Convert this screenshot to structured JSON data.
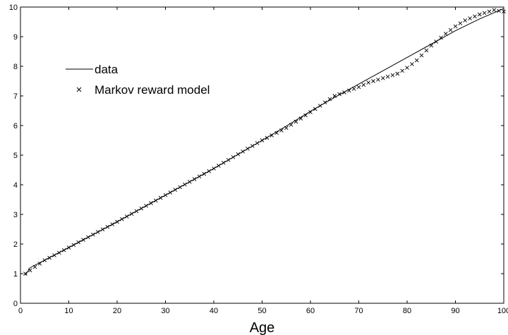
{
  "chart_data": {
    "type": "line",
    "title": "",
    "xlabel": "Age",
    "ylabel": "",
    "xlim": [
      0,
      100
    ],
    "ylim": [
      0,
      10
    ],
    "xticks": [
      "0",
      "10",
      "20",
      "30",
      "40",
      "50",
      "60",
      "70",
      "80",
      "90",
      "100"
    ],
    "yticks": [
      "0",
      "1",
      "2",
      "3",
      "4",
      "5",
      "6",
      "7",
      "8",
      "9",
      "10"
    ],
    "grid": false,
    "legend": {
      "position": "top-left",
      "entries": [
        "data",
        "Markov reward model"
      ]
    },
    "series": [
      {
        "name": "data",
        "style": "line",
        "x": [
          1,
          2,
          10,
          20,
          30,
          40,
          50,
          55,
          60,
          65,
          70,
          75,
          80,
          85,
          90,
          95,
          100
        ],
        "y": [
          0.95,
          1.2,
          1.88,
          2.75,
          3.65,
          4.55,
          5.5,
          5.98,
          6.48,
          6.95,
          7.4,
          7.85,
          8.3,
          8.75,
          9.2,
          9.6,
          9.95
        ]
      },
      {
        "name": "Markov reward model",
        "style": "markers",
        "marker": "x",
        "x": [
          1,
          5,
          10,
          15,
          20,
          25,
          30,
          35,
          40,
          45,
          50,
          55,
          60,
          65,
          70,
          72,
          75,
          78,
          80,
          82,
          85,
          88,
          90,
          92,
          95,
          98,
          100
        ],
        "y": [
          1.0,
          1.45,
          1.88,
          2.32,
          2.75,
          3.2,
          3.65,
          4.1,
          4.55,
          5.03,
          5.5,
          5.92,
          6.45,
          7.0,
          7.3,
          7.45,
          7.6,
          7.75,
          7.95,
          8.2,
          8.7,
          9.1,
          9.35,
          9.55,
          9.75,
          9.9,
          9.85
        ]
      }
    ]
  }
}
